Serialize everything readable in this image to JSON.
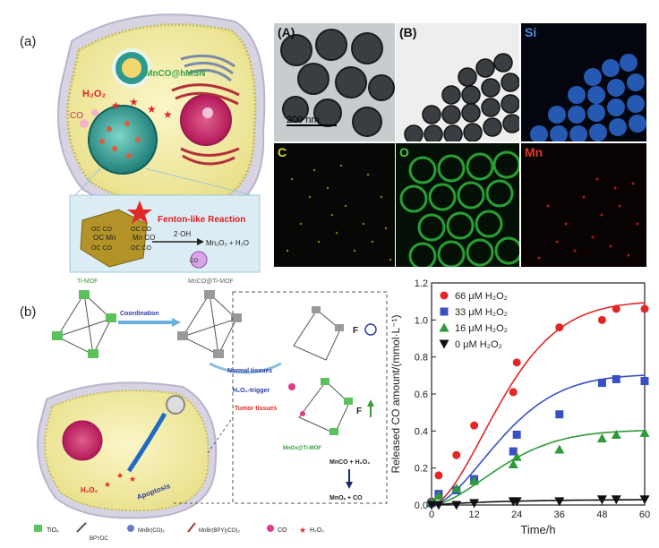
{
  "panel_a": {
    "label": "(a)",
    "schematic": {
      "particle_label": "MnCO@hMSN",
      "h2o2": "H₂O₂",
      "co": "CO",
      "reaction": "Fenton-like Reaction",
      "oh": "2·OH",
      "products": "Mn₂O₃ + H₂O",
      "co_bubble": "CO",
      "mn_left": "OC  Mn",
      "mn_right": "Mn  CO",
      "co_top_l": "OC  CO",
      "co_top_r": "OC  CO",
      "co_bot_l": "OC  CO",
      "co_bot_r": "OC  CO"
    },
    "micrographs": [
      {
        "label": "(A)",
        "color": "#111111"
      },
      {
        "label": "(B)",
        "color": "#111111"
      },
      {
        "label": "Si",
        "color": "#4a8fd8"
      },
      {
        "label": "C",
        "color": "#d6d62a"
      },
      {
        "label": "O",
        "color": "#3bd13b"
      },
      {
        "label": "Mn",
        "color": "#e03a2a"
      }
    ],
    "scalebar": "200 nm"
  },
  "panel_b": {
    "label": "(b)",
    "schematic": {
      "ti_mof": "Ti-MOF",
      "mnco_ti_mof": "MnCO@Ti-MOF",
      "coordination": "Coordination",
      "normal": "Normal tissues",
      "trigger": "H₂O₂-trigger",
      "tumor": "Tumor tissues",
      "mnox_ti_mof": "MnOx@Ti-MOF",
      "reaction1": "MnCO + H₂O₂",
      "reaction2": "MnOₓ + CO",
      "h2o2_cell": "H₂O₂",
      "apoptosis": "Apoptosis",
      "f_sym": "F",
      "legend_items": [
        "TiO₆",
        "BPYDC",
        "MnBr(CO)₅",
        "MnBr(BPY)(CO)₃",
        "CO",
        "H₂O₂"
      ]
    }
  },
  "chart_data": {
    "type": "scatter",
    "xlabel": "Time/h",
    "ylabel": "Released CO amount/(mmol·L⁻¹)",
    "xlim": [
      0,
      60
    ],
    "ylim": [
      0,
      1.2
    ],
    "xticks": [
      0,
      12,
      24,
      36,
      48,
      60
    ],
    "yticks": [
      0.0,
      0.2,
      0.4,
      0.6,
      0.8,
      1.0,
      1.2
    ],
    "legend_position": "top-left",
    "series": [
      {
        "name": "66 μM H₂O₂",
        "color": "#e32626",
        "marker": "circle",
        "x": [
          0,
          2,
          7,
          12,
          23,
          24,
          36,
          48,
          52,
          60
        ],
        "y": [
          0.02,
          0.16,
          0.27,
          0.43,
          0.61,
          0.77,
          0.96,
          1.0,
          1.06,
          1.06
        ]
      },
      {
        "name": "33 μM H₂O₂",
        "color": "#3b4fc4",
        "marker": "square",
        "x": [
          0,
          2,
          7,
          12,
          23,
          24,
          36,
          48,
          52,
          60
        ],
        "y": [
          0.01,
          0.06,
          0.08,
          0.14,
          0.29,
          0.38,
          0.49,
          0.66,
          0.68,
          0.67
        ]
      },
      {
        "name": "16 μM H₂O₂",
        "color": "#2e9a3a",
        "marker": "triangle",
        "x": [
          0,
          2,
          7,
          12,
          23,
          24,
          36,
          48,
          52,
          60
        ],
        "y": [
          0.02,
          0.05,
          0.09,
          0.13,
          0.22,
          0.26,
          0.3,
          0.36,
          0.38,
          0.39
        ]
      },
      {
        "name": "0  μM H₂O₂",
        "color": "#111111",
        "marker": "triangle-down",
        "x": [
          0,
          2,
          7,
          12,
          23,
          24,
          36,
          48,
          52,
          60
        ],
        "y": [
          0.0,
          0.0,
          0.0,
          0.01,
          0.02,
          0.02,
          0.02,
          0.03,
          0.03,
          0.03
        ]
      }
    ]
  }
}
